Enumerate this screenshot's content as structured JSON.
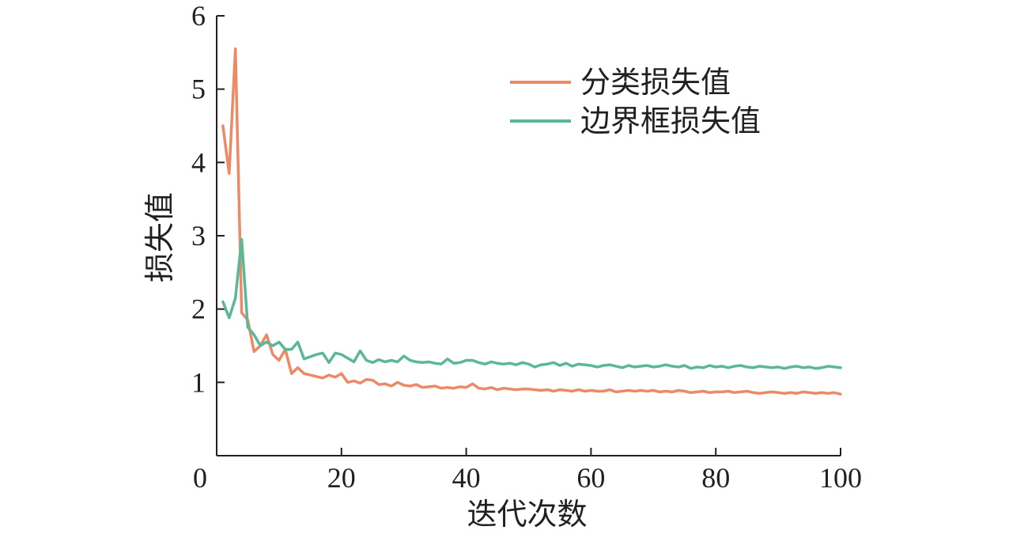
{
  "chart_data": {
    "type": "line",
    "title": "",
    "xlabel": "迭代次数",
    "ylabel": "损失值",
    "xlim": [
      0,
      100
    ],
    "ylim": [
      0,
      6
    ],
    "x_ticks": [
      "0",
      "20",
      "40",
      "60",
      "80",
      "100"
    ],
    "y_ticks": [
      "1",
      "2",
      "3",
      "4",
      "5",
      "6"
    ],
    "grid": false,
    "legend_position": "top-right",
    "x": [
      1,
      2,
      3,
      4,
      5,
      6,
      7,
      8,
      9,
      10,
      11,
      12,
      13,
      14,
      15,
      16,
      17,
      18,
      19,
      20,
      21,
      22,
      23,
      24,
      25,
      26,
      27,
      28,
      29,
      30,
      31,
      32,
      33,
      34,
      35,
      36,
      37,
      38,
      39,
      40,
      41,
      42,
      43,
      44,
      45,
      46,
      47,
      48,
      49,
      50,
      51,
      52,
      53,
      54,
      55,
      56,
      57,
      58,
      59,
      60,
      61,
      62,
      63,
      64,
      65,
      66,
      67,
      68,
      69,
      70,
      71,
      72,
      73,
      74,
      75,
      76,
      77,
      78,
      79,
      80,
      81,
      82,
      83,
      84,
      85,
      86,
      87,
      88,
      89,
      90,
      91,
      92,
      93,
      94,
      95,
      96,
      97,
      98,
      99,
      100
    ],
    "series": [
      {
        "name": "分类损失值",
        "color": "#ec8a68",
        "values": [
          4.5,
          3.85,
          5.55,
          1.95,
          1.85,
          1.42,
          1.5,
          1.65,
          1.38,
          1.3,
          1.45,
          1.12,
          1.2,
          1.12,
          1.1,
          1.08,
          1.06,
          1.1,
          1.07,
          1.12,
          1.0,
          1.02,
          0.99,
          1.04,
          1.03,
          0.97,
          0.98,
          0.95,
          1.0,
          0.96,
          0.95,
          0.97,
          0.93,
          0.94,
          0.95,
          0.92,
          0.93,
          0.92,
          0.94,
          0.93,
          0.98,
          0.92,
          0.91,
          0.93,
          0.9,
          0.92,
          0.91,
          0.9,
          0.91,
          0.91,
          0.9,
          0.89,
          0.9,
          0.88,
          0.9,
          0.89,
          0.88,
          0.9,
          0.88,
          0.89,
          0.88,
          0.88,
          0.9,
          0.87,
          0.88,
          0.89,
          0.88,
          0.89,
          0.88,
          0.89,
          0.87,
          0.88,
          0.87,
          0.89,
          0.88,
          0.86,
          0.87,
          0.88,
          0.86,
          0.87,
          0.87,
          0.88,
          0.86,
          0.87,
          0.88,
          0.86,
          0.85,
          0.86,
          0.87,
          0.86,
          0.85,
          0.86,
          0.85,
          0.87,
          0.86,
          0.85,
          0.86,
          0.85,
          0.86,
          0.84
        ]
      },
      {
        "name": "边界框损失值",
        "color": "#5bb897",
        "values": [
          2.1,
          1.88,
          2.15,
          2.95,
          1.75,
          1.65,
          1.5,
          1.55,
          1.5,
          1.55,
          1.45,
          1.45,
          1.55,
          1.32,
          1.35,
          1.38,
          1.4,
          1.27,
          1.4,
          1.38,
          1.33,
          1.28,
          1.43,
          1.3,
          1.27,
          1.31,
          1.28,
          1.3,
          1.28,
          1.36,
          1.3,
          1.28,
          1.27,
          1.28,
          1.26,
          1.25,
          1.32,
          1.26,
          1.27,
          1.3,
          1.3,
          1.27,
          1.25,
          1.28,
          1.26,
          1.25,
          1.26,
          1.24,
          1.27,
          1.25,
          1.21,
          1.24,
          1.25,
          1.27,
          1.23,
          1.26,
          1.22,
          1.25,
          1.24,
          1.23,
          1.21,
          1.23,
          1.24,
          1.22,
          1.2,
          1.23,
          1.21,
          1.22,
          1.23,
          1.21,
          1.22,
          1.24,
          1.22,
          1.21,
          1.23,
          1.19,
          1.21,
          1.2,
          1.23,
          1.21,
          1.22,
          1.2,
          1.22,
          1.23,
          1.21,
          1.2,
          1.22,
          1.21,
          1.2,
          1.21,
          1.19,
          1.21,
          1.22,
          1.2,
          1.21,
          1.19,
          1.2,
          1.22,
          1.21,
          1.2
        ]
      }
    ]
  }
}
